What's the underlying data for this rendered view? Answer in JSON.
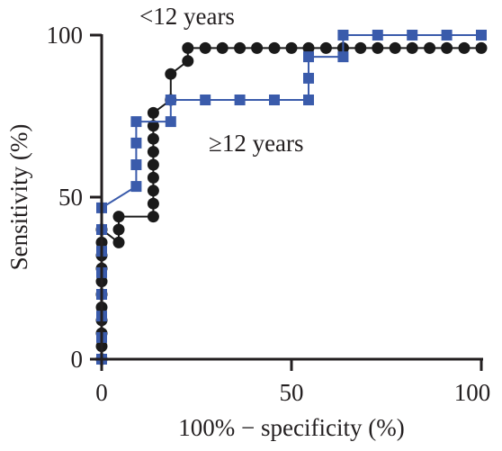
{
  "chart_data": {
    "type": "line",
    "title": "",
    "xlabel": "100% − specificity (%)",
    "ylabel": "Sensitivity (%)",
    "xlim": [
      0,
      100
    ],
    "ylim": [
      0,
      100
    ],
    "x_ticks": [
      "0",
      "50",
      "100"
    ],
    "y_ticks": [
      "0",
      "50",
      "100"
    ],
    "grid": false,
    "legend": "none",
    "annotations": [
      {
        "text": "<12 years",
        "series": "black"
      },
      {
        "text": "≥12 years",
        "series": "blue"
      }
    ],
    "series": [
      {
        "marker": "circle",
        "color": "#1a1a1a",
        "x": [
          0,
          0,
          0,
          0,
          0,
          0,
          0,
          0,
          0,
          0,
          0,
          4.5,
          4.5,
          4.5,
          13.6,
          13.6,
          13.6,
          13.6,
          13.6,
          13.6,
          13.6,
          13.6,
          13.6,
          18.2,
          18.2,
          22.7,
          22.7,
          27.3,
          31.8,
          36.4,
          40.9,
          45.5,
          50,
          54.5,
          59.1,
          63.6,
          68.2,
          72.7,
          77.3,
          81.8,
          86.4,
          90.9,
          95.5,
          100
        ],
        "y": [
          0,
          4,
          8,
          12,
          16,
          20,
          24,
          28,
          32,
          36,
          40,
          36,
          40,
          44,
          44,
          48,
          52,
          56,
          60,
          64,
          68,
          72,
          76,
          80,
          88,
          92,
          96,
          96,
          96,
          96,
          96,
          96,
          96,
          96,
          96,
          96,
          96,
          96,
          96,
          96,
          96,
          96,
          96,
          96
        ]
      },
      {
        "marker": "square",
        "color": "#3a5bab",
        "x": [
          0,
          0,
          0,
          0,
          0,
          0,
          0,
          0,
          9.1,
          9.1,
          9.1,
          9.1,
          18.2,
          18.2,
          27.3,
          36.4,
          45.5,
          54.5,
          54.5,
          54.5,
          63.6,
          63.6,
          72.7,
          81.8,
          90.9,
          100
        ],
        "y": [
          0,
          6.7,
          13.3,
          20,
          26.7,
          33.3,
          40,
          46.7,
          53.3,
          60,
          66.7,
          73.3,
          73.3,
          80,
          80,
          80,
          80,
          80,
          86.7,
          93.3,
          93.3,
          100,
          100,
          100,
          100,
          100
        ]
      }
    ]
  }
}
